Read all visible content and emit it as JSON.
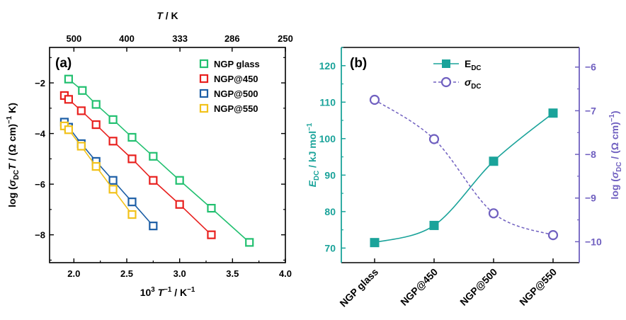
{
  "chart_data": [
    {
      "type": "scatter",
      "panel_label": "(a)",
      "xlabel_parts": [
        "10",
        "3",
        " ",
        "T",
        "−1",
        " / K",
        "−1"
      ],
      "ylabel_parts": [
        "log (",
        "σ",
        "DC",
        "T",
        " / (Ω cm)",
        "−1",
        " K)"
      ],
      "top_axis_label_parts": [
        "T",
        " / K"
      ],
      "xlim": [
        1.77,
        4.0
      ],
      "ylim": [
        -9.1,
        -0.6
      ],
      "x_ticks": [
        2.0,
        2.5,
        3.0,
        3.5,
        4.0
      ],
      "x_tick_labels": [
        "2.0",
        "2.5",
        "3.0",
        "3.5",
        "4.0"
      ],
      "y_ticks": [
        -8,
        -6,
        -4,
        -2
      ],
      "y_tick_labels": [
        "−8",
        "−6",
        "−4",
        "−2"
      ],
      "top_ticks_T": [
        500,
        400,
        333,
        286,
        250
      ],
      "top_tick_labels": [
        "500",
        "400",
        "333",
        "286",
        "250"
      ],
      "grid": false,
      "legend_position": "top-right",
      "series": [
        {
          "name": "NGP glass",
          "color": "#22c070",
          "x": [
            1.95,
            2.08,
            2.21,
            2.37,
            2.55,
            2.75,
            3.0,
            3.3,
            3.66
          ],
          "y": [
            -1.85,
            -2.3,
            -2.85,
            -3.45,
            -4.15,
            -4.9,
            -5.85,
            -6.95,
            -8.3
          ]
        },
        {
          "name": "NGP@450",
          "color": "#e8201e",
          "x": [
            1.91,
            1.95,
            2.07,
            2.21,
            2.37,
            2.55,
            2.75,
            3.0,
            3.3
          ],
          "y": [
            -2.5,
            -2.65,
            -3.1,
            -3.65,
            -4.3,
            -5.0,
            -5.85,
            -6.8,
            -8.0
          ]
        },
        {
          "name": "NGP@500",
          "color": "#1d5fa6",
          "x": [
            1.91,
            1.95,
            2.07,
            2.21,
            2.37,
            2.55,
            2.75
          ],
          "y": [
            -3.55,
            -3.75,
            -4.4,
            -5.1,
            -5.85,
            -6.7,
            -7.65
          ]
        },
        {
          "name": "NGP@550",
          "color": "#f2c21b",
          "x": [
            1.91,
            1.95,
            2.07,
            2.21,
            2.37,
            2.55
          ],
          "y": [
            -3.7,
            -3.85,
            -4.5,
            -5.3,
            -6.2,
            -7.2
          ]
        }
      ]
    },
    {
      "type": "line",
      "panel_label": "(b)",
      "categories": [
        "NGP glass",
        "NGP@450",
        "NGP@500",
        "NGP@550"
      ],
      "ylabel_left_parts": [
        "E",
        "DC",
        " / kJ mol",
        "−1"
      ],
      "ylabel_right_parts": [
        "log (",
        "σ",
        "DC",
        " / (Ω cm)",
        "−1",
        ")"
      ],
      "ylim_left": [
        66,
        125
      ],
      "ylim_right": [
        -10.48,
        -5.55
      ],
      "left_ticks": [
        70,
        80,
        90,
        100,
        110,
        120
      ],
      "left_tick_labels": [
        "70",
        "80",
        "90",
        "100",
        "110",
        "120"
      ],
      "right_ticks": [
        -10,
        -9,
        -8,
        -7,
        -6
      ],
      "right_tick_labels": [
        "−10",
        "−9",
        "−8",
        "−7",
        "−6"
      ],
      "grid": false,
      "legend_position": "top-center",
      "series": [
        {
          "name_parts": [
            "E",
            "DC"
          ],
          "axis": "left",
          "color": "#1aa39a",
          "marker": "filled-square",
          "values": [
            71.5,
            76.2,
            93.8,
            107.0
          ]
        },
        {
          "name_parts": [
            "σ",
            "DC"
          ],
          "axis": "right",
          "color": "#7060c0",
          "marker": "open-circle",
          "values": [
            -6.75,
            -7.65,
            -9.35,
            -9.85
          ]
        }
      ]
    }
  ]
}
